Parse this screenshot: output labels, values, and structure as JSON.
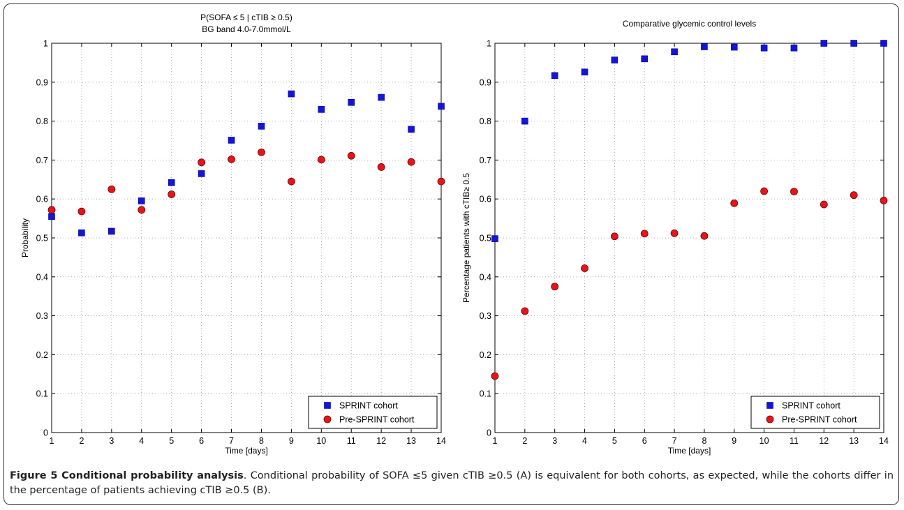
{
  "chart_data": [
    {
      "type": "scatter",
      "title": "P(SOFA ≤ 5 | cTIB ≥ 0.5)",
      "subtitle": "BG band 4.0-7.0mmol/L",
      "xlabel": "Time [days]",
      "ylabel": "Probability",
      "xlim": [
        1,
        14
      ],
      "ylim": [
        0,
        1
      ],
      "xticks": [
        "1",
        "2",
        "3",
        "4",
        "5",
        "6",
        "7",
        "8",
        "9",
        "10",
        "11",
        "12",
        "13",
        "14"
      ],
      "yticks": [
        "0",
        "0.1",
        "0.2",
        "0.3",
        "0.4",
        "0.5",
        "0.6",
        "0.7",
        "0.8",
        "0.9",
        "1"
      ],
      "grid": true,
      "legend_position": "bottom-right",
      "x": [
        1,
        2,
        3,
        4,
        5,
        6,
        7,
        8,
        9,
        10,
        11,
        12,
        13,
        14
      ],
      "series": [
        {
          "name": "SPRINT cohort",
          "marker": "square",
          "color": "#1515d6",
          "values": [
            0.555,
            0.513,
            0.517,
            0.595,
            0.642,
            0.665,
            0.751,
            0.787,
            0.87,
            0.83,
            0.848,
            0.861,
            0.779,
            0.838
          ]
        },
        {
          "name": "Pre-SPRINT cohort",
          "marker": "circle",
          "color": "#e8141a",
          "values": [
            0.572,
            0.568,
            0.625,
            0.572,
            0.612,
            0.694,
            0.702,
            0.72,
            0.645,
            0.701,
            0.711,
            0.682,
            0.695,
            0.645
          ]
        }
      ]
    },
    {
      "type": "scatter",
      "title": "Comparative glycemic control levels",
      "xlabel": "Time [days]",
      "ylabel": "Percentage patients with cTIB≥ 0.5",
      "xlim": [
        1,
        14
      ],
      "ylim": [
        0,
        1
      ],
      "xticks": [
        "1",
        "2",
        "3",
        "4",
        "5",
        "6",
        "7",
        "8",
        "9",
        "10",
        "11",
        "12",
        "13",
        "14"
      ],
      "yticks": [
        "0",
        "0.1",
        "0.2",
        "0.3",
        "0.4",
        "0.5",
        "0.6",
        "0.7",
        "0.8",
        "0.9",
        "1"
      ],
      "grid": true,
      "legend_position": "bottom-right",
      "x": [
        1,
        2,
        3,
        4,
        5,
        6,
        7,
        8,
        9,
        10,
        11,
        12,
        13,
        14
      ],
      "series": [
        {
          "name": "SPRINT cohort",
          "marker": "square",
          "color": "#1515d6",
          "values": [
            0.498,
            0.8,
            0.917,
            0.926,
            0.957,
            0.96,
            0.978,
            0.991,
            0.99,
            0.988,
            0.988,
            1.0,
            1.0,
            1.0
          ]
        },
        {
          "name": "Pre-SPRINT cohort",
          "marker": "circle",
          "color": "#e8141a",
          "values": [
            0.145,
            0.312,
            0.375,
            0.422,
            0.504,
            0.511,
            0.512,
            0.505,
            0.589,
            0.62,
            0.619,
            0.586,
            0.61,
            0.596
          ]
        }
      ]
    }
  ],
  "caption": {
    "bold": "Figure 5 Conditional probability analysis",
    "text": ". Conditional probability of SOFA ≤5 given cTIB ≥0.5 (A) is equivalent for both cohorts, as expected, while the cohorts differ in the percentage of patients achieving cTIB ≥0.5 (B)."
  }
}
